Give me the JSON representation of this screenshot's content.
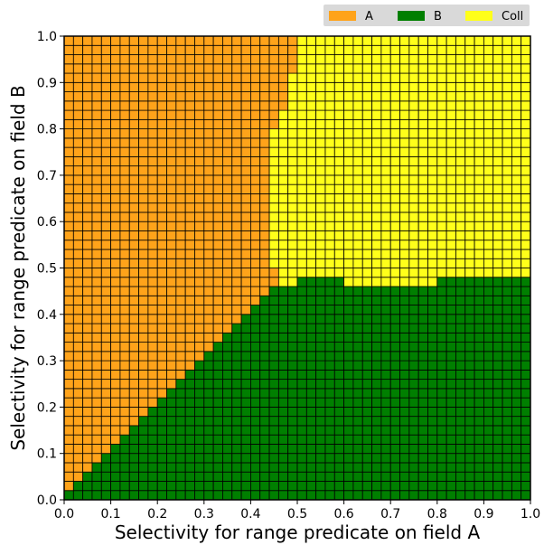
{
  "chart_data": {
    "type": "heatmap",
    "title": "",
    "xlabel": "Selectivity for range predicate on field A",
    "ylabel": "Selectivity for range predicate on field B",
    "xlim": [
      0.0,
      1.0
    ],
    "ylim": [
      0.0,
      1.0
    ],
    "xticks": [
      "0.0",
      "0.1",
      "0.2",
      "0.3",
      "0.4",
      "0.5",
      "0.6",
      "0.7",
      "0.8",
      "0.9",
      "1.0"
    ],
    "yticks": [
      "0.0",
      "0.1",
      "0.2",
      "0.3",
      "0.4",
      "0.5",
      "0.6",
      "0.7",
      "0.8",
      "0.9",
      "1.0"
    ],
    "grid_cells": 50,
    "legend": [
      {
        "label": "A",
        "color": "#ffa31a"
      },
      {
        "label": "B",
        "color": "#007f00"
      },
      {
        "label": "Coll",
        "color": "#ffff1a"
      }
    ],
    "legend_position": "top-right, above plot",
    "regions": {
      "A_B_boundary": [
        [
          0.0,
          0.0
        ],
        [
          0.02,
          0.02
        ],
        [
          0.04,
          0.04
        ],
        [
          0.06,
          0.06
        ],
        [
          0.08,
          0.08
        ],
        [
          0.1,
          0.1
        ],
        [
          0.12,
          0.12
        ],
        [
          0.14,
          0.14
        ],
        [
          0.16,
          0.16
        ],
        [
          0.18,
          0.18
        ],
        [
          0.2,
          0.2
        ],
        [
          0.22,
          0.22
        ],
        [
          0.24,
          0.24
        ],
        [
          0.26,
          0.26
        ],
        [
          0.28,
          0.28
        ],
        [
          0.3,
          0.3
        ],
        [
          0.32,
          0.32
        ],
        [
          0.34,
          0.34
        ],
        [
          0.36,
          0.36
        ],
        [
          0.38,
          0.38
        ],
        [
          0.4,
          0.4
        ],
        [
          0.42,
          0.42
        ],
        [
          0.44,
          0.44
        ],
        [
          0.46,
          0.46
        ],
        [
          0.48,
          0.48
        ]
      ],
      "A_Coll_boundary": [
        [
          0.46,
          0.48
        ],
        [
          0.44,
          0.52
        ],
        [
          0.44,
          0.56
        ],
        [
          0.44,
          0.6
        ],
        [
          0.45,
          0.64
        ],
        [
          0.45,
          0.68
        ],
        [
          0.44,
          0.72
        ],
        [
          0.44,
          0.76
        ],
        [
          0.45,
          0.8
        ],
        [
          0.47,
          0.84
        ],
        [
          0.48,
          0.88
        ],
        [
          0.49,
          0.92
        ],
        [
          0.5,
          0.96
        ],
        [
          0.5,
          1.0
        ]
      ],
      "B_Coll_boundary": [
        [
          0.48,
          0.46
        ],
        [
          0.5,
          0.48
        ],
        [
          0.6,
          0.47
        ],
        [
          0.7,
          0.46
        ],
        [
          0.8,
          0.47
        ],
        [
          0.9,
          0.48
        ],
        [
          1.0,
          0.48
        ]
      ],
      "notes": "A occupies the region left of the A-B diagonal and left of ~0.45 above y=0.5; B occupies the lower-right below ~0.46-0.48; Coll occupies the upper-right."
    }
  }
}
